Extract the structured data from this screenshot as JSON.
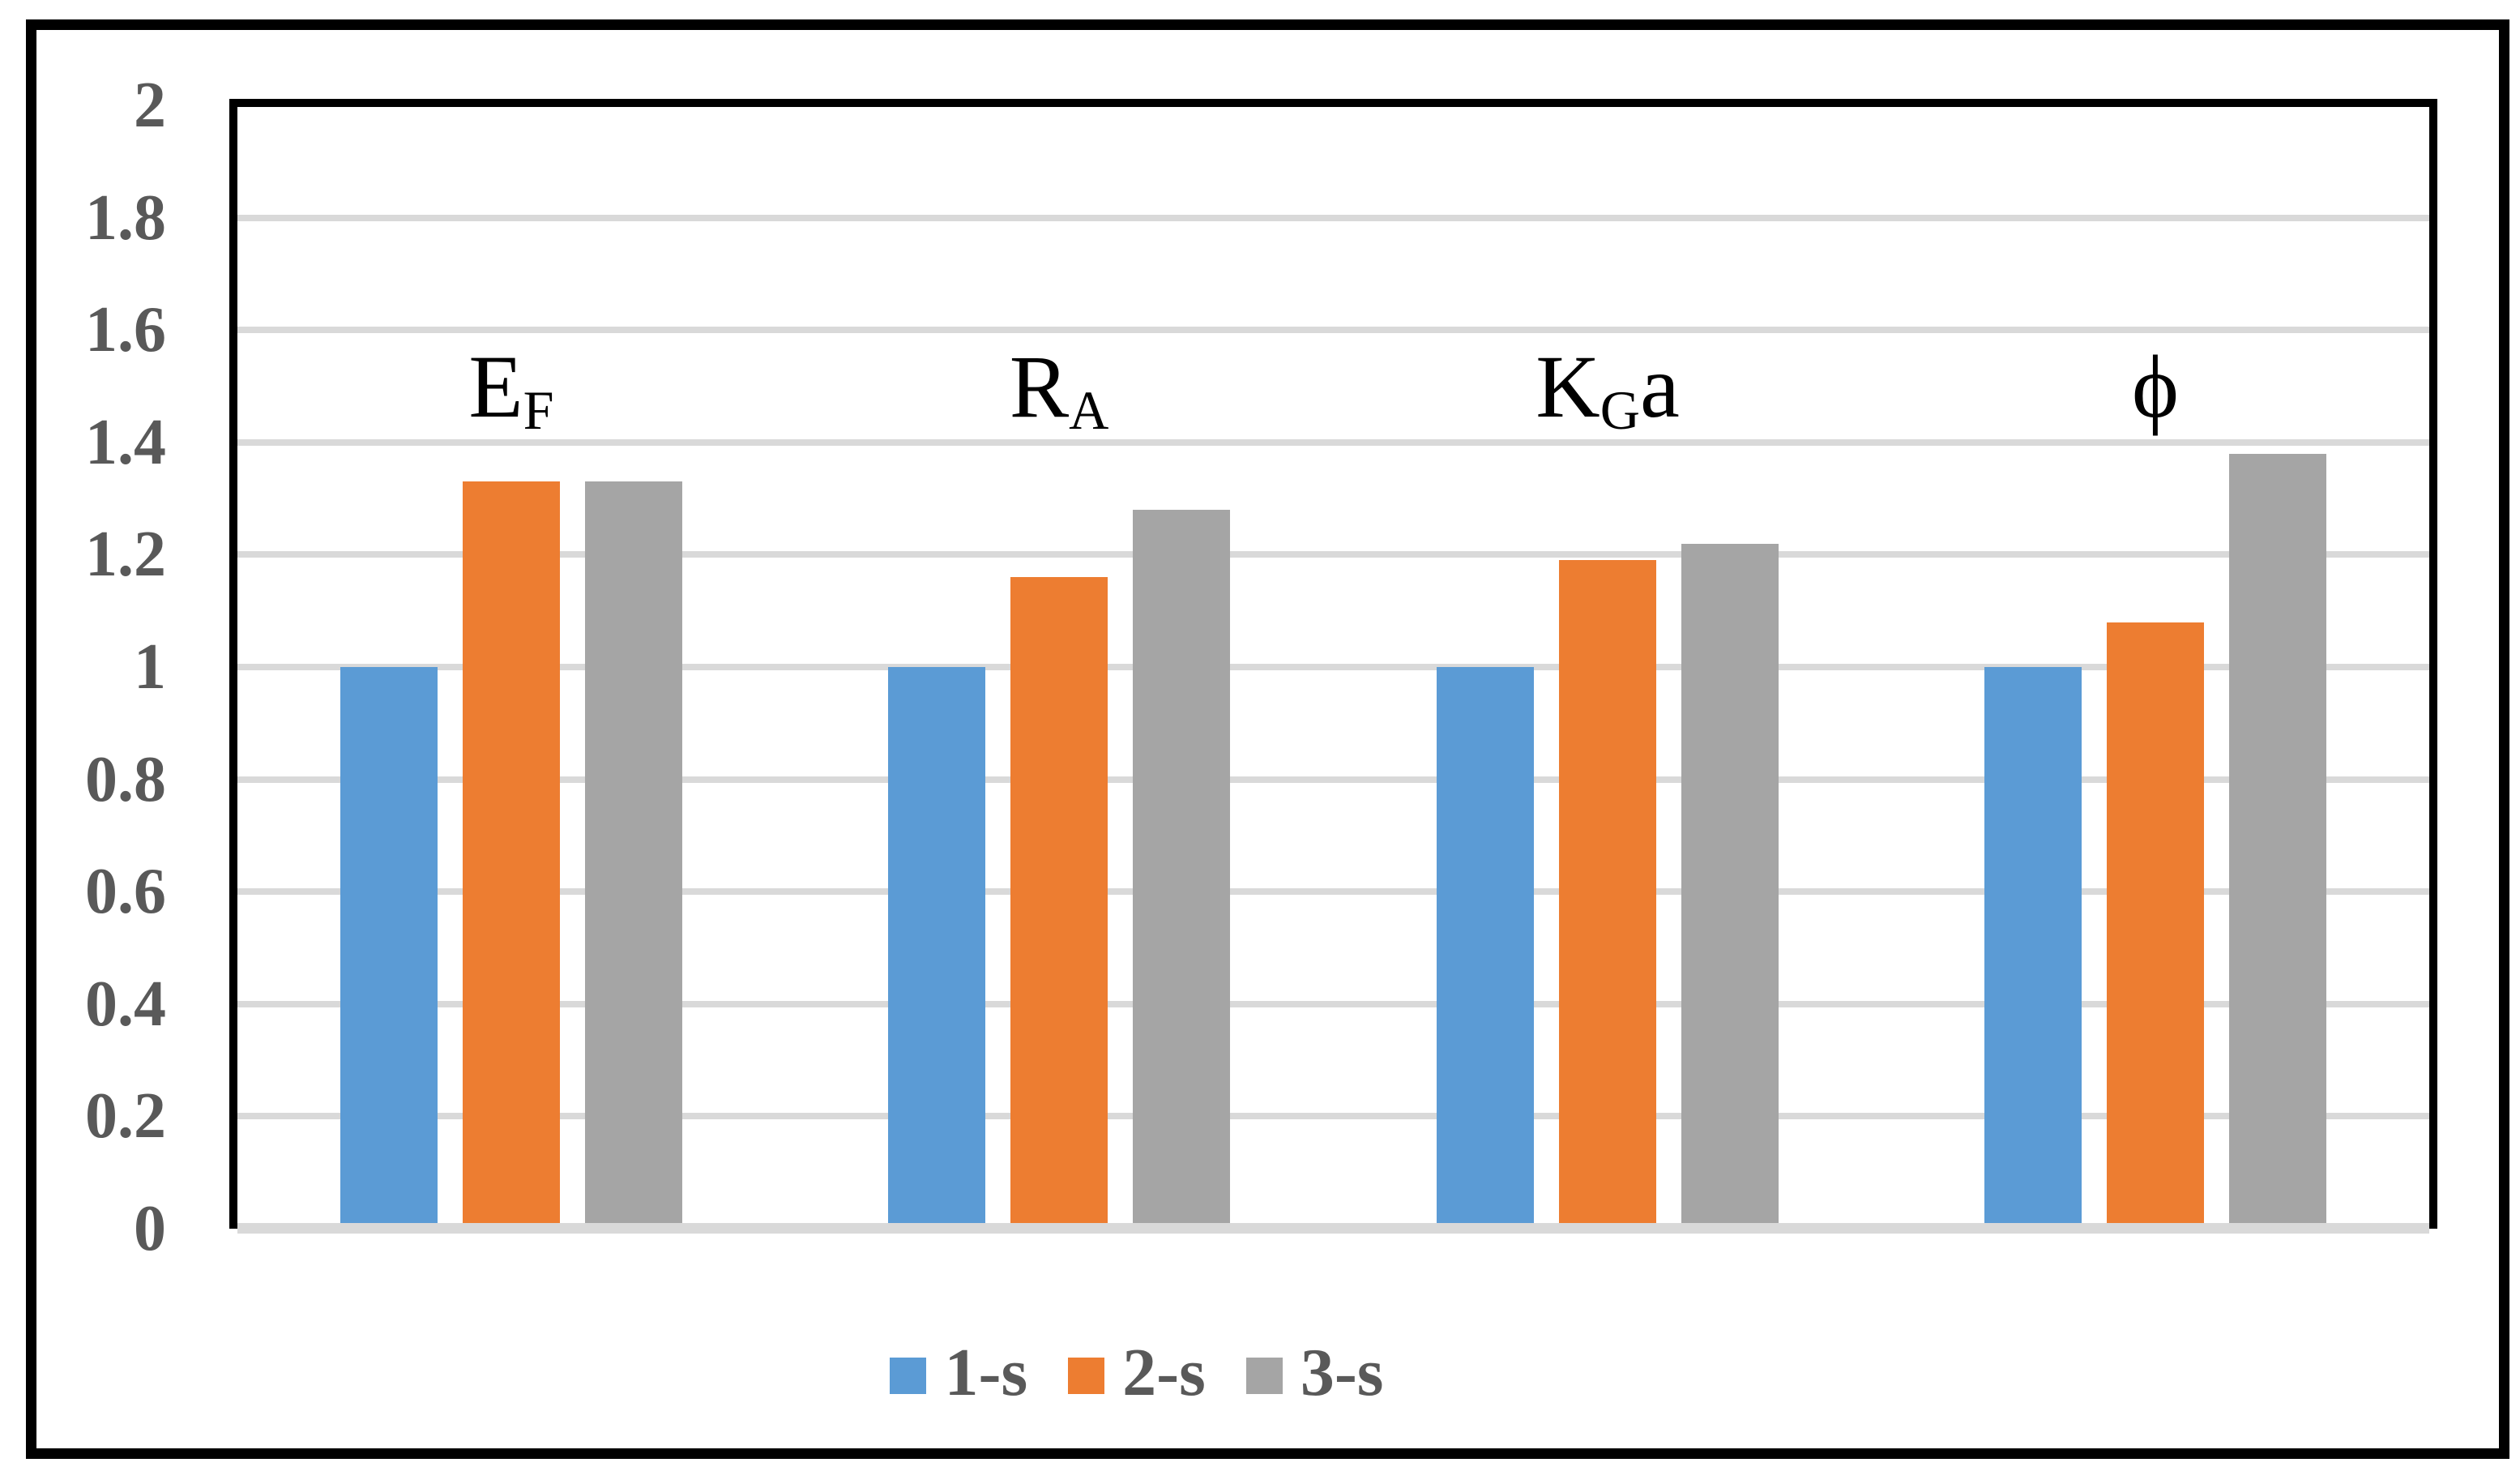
{
  "figure": {
    "background": "#FFFFFF",
    "outer_border_color": "#000000",
    "plot_border_color": "#000000"
  },
  "chart_data": {
    "type": "bar",
    "title": "",
    "xlabel": "",
    "ylabel": "",
    "categories": [
      "EF",
      "RA",
      "KGa",
      "ϕ"
    ],
    "category_labels": [
      {
        "base": "E",
        "sub": "F",
        "suffix": ""
      },
      {
        "base": "R",
        "sub": "A",
        "suffix": ""
      },
      {
        "base": "K",
        "sub": "G",
        "suffix": "a"
      },
      {
        "base": "ϕ",
        "sub": "",
        "suffix": ""
      }
    ],
    "series": [
      {
        "name": "1-s",
        "color": "#5B9BD5",
        "values": [
          1.0,
          1.0,
          1.0,
          1.0
        ]
      },
      {
        "name": "2-s",
        "color": "#ED7D31",
        "values": [
          1.33,
          1.16,
          1.19,
          1.08
        ]
      },
      {
        "name": "3-s",
        "color": "#A5A5A5",
        "values": [
          1.33,
          1.28,
          1.22,
          1.38
        ]
      }
    ],
    "ylim": [
      0,
      2
    ],
    "ytick_step": 0.2,
    "ytick_labels": [
      "2",
      "1.8",
      "1.6",
      "1.4",
      "1.2",
      "1",
      "0.8",
      "0.6",
      "0.4",
      "0.2",
      "0"
    ],
    "grid": "horizontal",
    "gridline_color": "#D9D9D9",
    "zero_line_color": "#D9D9D9",
    "axis_text_color": "#595959",
    "category_text_color": "#000000",
    "legend_position": "bottom"
  }
}
